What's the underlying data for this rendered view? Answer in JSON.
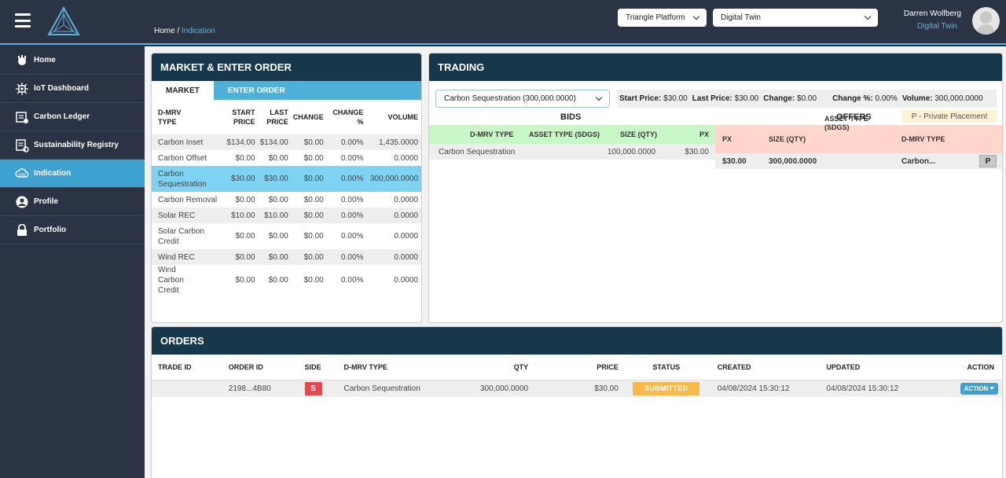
{
  "header": {
    "breadcrumb_home": "Home",
    "breadcrumb_sep": " / ",
    "breadcrumb_current": "Indication",
    "platform_select": "Triangle Platform",
    "mode_select": "Digital Twin",
    "user_name": "Darren Wolfberg",
    "user_role": "Digital Twin"
  },
  "sidebar": {
    "items": [
      {
        "label": "Home",
        "icon": "home-icon"
      },
      {
        "label": "IoT Dashboard",
        "icon": "iot-icon"
      },
      {
        "label": "Carbon Ledger",
        "icon": "ledger-icon"
      },
      {
        "label": "Sustainability Registry",
        "icon": "registry-icon"
      },
      {
        "label": "Indication",
        "icon": "co2-icon"
      },
      {
        "label": "Profile",
        "icon": "user-icon"
      },
      {
        "label": "Portfolio",
        "icon": "briefcase-icon"
      }
    ]
  },
  "market": {
    "title": "MARKET & ENTER ORDER",
    "tab_market": "MARKET",
    "tab_enter_order": "ENTER ORDER",
    "columns": {
      "type_line1": "D-MRV",
      "type_line2": "TYPE",
      "start_line1": "START",
      "start_line2": "PRICE",
      "last_line1": "LAST",
      "last_line2": "PRICE",
      "change": "CHANGE",
      "changepct_line1": "CHANGE",
      "changepct_line2": "%",
      "volume": "VOLUME"
    },
    "rows": [
      {
        "type": "Carbon Inset",
        "start": "$134.00",
        "last": "$134.00",
        "change": "$0.00",
        "pct": "0.00%",
        "volume": "1,435.0000"
      },
      {
        "type": "Carbon Offset",
        "start": "$0.00",
        "last": "$0.00",
        "change": "$0.00",
        "pct": "0.00%",
        "volume": "0.0000"
      },
      {
        "type": "Carbon Sequestration",
        "start": "$30.00",
        "last": "$30.00",
        "change": "$0.00",
        "pct": "0.00%",
        "volume": "300,000.0000"
      },
      {
        "type": "Carbon Removal",
        "start": "$0.00",
        "last": "$0.00",
        "change": "$0.00",
        "pct": "0.00%",
        "volume": "0.0000"
      },
      {
        "type": "Solar REC",
        "start": "$10.00",
        "last": "$10.00",
        "change": "$0.00",
        "pct": "0.00%",
        "volume": "0.0000"
      },
      {
        "type": "Solar Carbon Credit",
        "start": "$0.00",
        "last": "$0.00",
        "change": "$0.00",
        "pct": "0.00%",
        "volume": "0.0000"
      },
      {
        "type": "Wind REC",
        "start": "$0.00",
        "last": "$0.00",
        "change": "$0.00",
        "pct": "0.00%",
        "volume": "0.0000"
      },
      {
        "type": "Wind Carbon Credit",
        "start": "$0.00",
        "last": "$0.00",
        "change": "$0.00",
        "pct": "0.00%",
        "volume": "0.0000"
      }
    ]
  },
  "trading": {
    "title": "TRADING",
    "select_value": "Carbon Sequestration (300,000.0000)",
    "stats": {
      "start_label": "Start Price:",
      "start_value": "$30.00",
      "last_label": "Last Price:",
      "last_value": "$30.00",
      "change_label": "Change:",
      "change_value": "$0.00",
      "pct_label": "Change %:",
      "pct_value": "0.00%",
      "volume_label": "Volume:",
      "volume_value": "300,000.0000"
    },
    "bids_title": "BIDS",
    "offers_title": "OFFERS",
    "private_placement": "P - Private Placement",
    "bids_columns": {
      "type": "D-MRV TYPE",
      "asset": "ASSET TYPE (SDGS)",
      "size": "SIZE (QTY)",
      "px": "PX"
    },
    "bids_row": {
      "type": "Carbon Sequestration",
      "asset": "",
      "size": "100,000.0000",
      "px": "$30.00"
    },
    "offers_columns": {
      "px": "PX",
      "size": "SIZE (QTY)",
      "asset_line1": "ASSET TYPE",
      "asset_line2": "(SDGS)",
      "type": "D-MRV TYPE"
    },
    "offers_row": {
      "px": "$30.00",
      "size": "300,000.0000",
      "asset": "",
      "type": "Carbon...",
      "badge": "P"
    }
  },
  "orders": {
    "title": "ORDERS",
    "columns": {
      "trade_id": "TRADE ID",
      "order_id": "ORDER ID",
      "side": "SIDE",
      "type": "D-MRV TYPE",
      "qty": "QTY",
      "price": "PRICE",
      "status": "STATUS",
      "created": "CREATED",
      "updated": "UPDATED",
      "action": "ACTION"
    },
    "rows": [
      {
        "trade_id": "",
        "order_id": "2198...4B80",
        "side": "S",
        "type": "Carbon Sequestration",
        "qty": "300,000.0000",
        "price": "$30.00",
        "status": "SUBMITTED",
        "created": "04/08/2024 15:30:12",
        "updated": "04/08/2024 15:30:12",
        "action": "ACTION"
      }
    ]
  }
}
